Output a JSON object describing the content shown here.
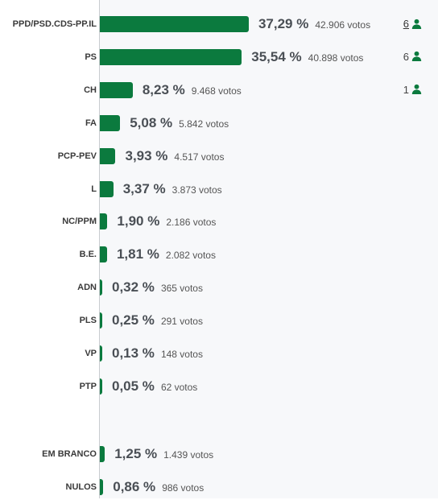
{
  "results": [
    {
      "party": "PPD/PSD.CDS-PP.IL",
      "share": 37.29,
      "percent": "37,29 %",
      "votes": "42.906 votos",
      "seats": "6",
      "seats_link": true
    },
    {
      "party": "PS",
      "share": 35.54,
      "percent": "35,54 %",
      "votes": "40.898 votos",
      "seats": "6",
      "seats_link": false
    },
    {
      "party": "CH",
      "share": 8.23,
      "percent": "8,23 %",
      "votes": "9.468 votos",
      "seats": "1",
      "seats_link": false
    },
    {
      "party": "FA",
      "share": 5.08,
      "percent": "5,08 %",
      "votes": "5.842 votos"
    },
    {
      "party": "PCP-PEV",
      "share": 3.93,
      "percent": "3,93 %",
      "votes": "4.517 votos"
    },
    {
      "party": "L",
      "share": 3.37,
      "percent": "3,37 %",
      "votes": "3.873 votos"
    },
    {
      "party": "NC/PPM",
      "share": 1.9,
      "percent": "1,90 %",
      "votes": "2.186 votos"
    },
    {
      "party": "B.E.",
      "share": 1.81,
      "percent": "1,81 %",
      "votes": "2.082 votos"
    },
    {
      "party": "ADN",
      "share": 0.32,
      "percent": "0,32 %",
      "votes": "365 votos"
    },
    {
      "party": "PLS",
      "share": 0.25,
      "percent": "0,25 %",
      "votes": "291 votos"
    },
    {
      "party": "VP",
      "share": 0.13,
      "percent": "0,13 %",
      "votes": "148 votos"
    },
    {
      "party": "PTP",
      "share": 0.05,
      "percent": "0,05 %",
      "votes": "62 votos"
    }
  ],
  "other": [
    {
      "party": "EM BRANCO",
      "share": 1.25,
      "percent": "1,25 %",
      "votes": "1.439 votos"
    },
    {
      "party": "NULOS",
      "share": 0.86,
      "percent": "0,86 %",
      "votes": "986 votos"
    }
  ],
  "icons": {
    "seat": "person-icon"
  },
  "colors": {
    "bar": "#0b7a3e",
    "seat_icon": "#0b7a3e"
  }
}
